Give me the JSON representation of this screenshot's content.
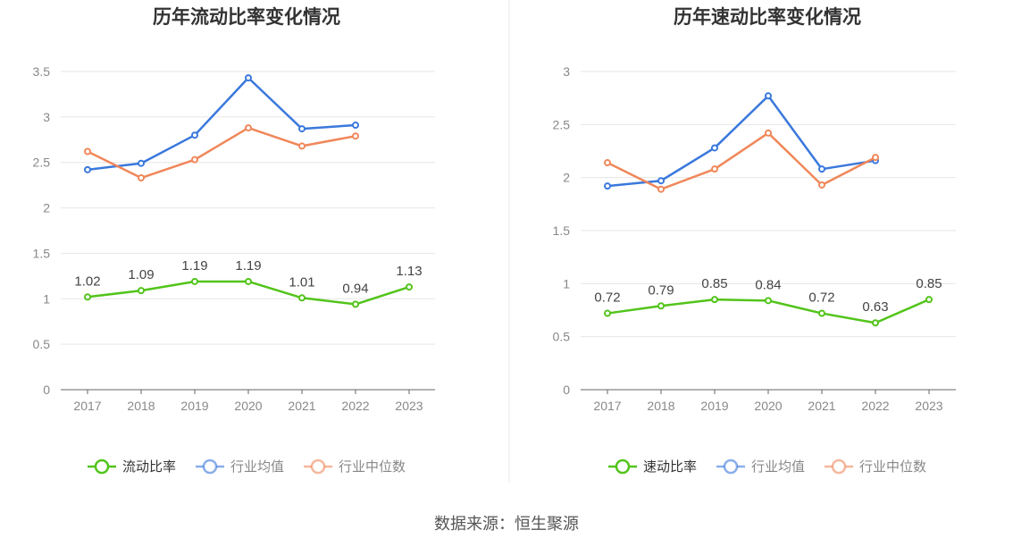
{
  "source": "数据来源：恒生聚源",
  "chart_data": [
    {
      "type": "line",
      "title": "历年流动比率变化情况",
      "categories": [
        "2017",
        "2018",
        "2019",
        "2020",
        "2021",
        "2022",
        "2023"
      ],
      "ylim": [
        0,
        3.5
      ],
      "yticks": [
        0,
        0.5,
        1,
        1.5,
        2,
        2.5,
        3,
        3.5
      ],
      "ytick_labels": [
        "0",
        "0.5",
        "1",
        "1.5",
        "2",
        "2.5",
        "3",
        "3.5"
      ],
      "grid": true,
      "legend": "bottom",
      "series": [
        {
          "name": "流动比率",
          "color": "#52c41a",
          "values": [
            1.02,
            1.09,
            1.19,
            1.19,
            1.01,
            0.94,
            1.13
          ],
          "labels": [
            "1.02",
            "1.09",
            "1.19",
            "1.19",
            "1.01",
            "0.94",
            "1.13"
          ]
        },
        {
          "name": "行业均值",
          "color": "#3a78dc",
          "values": [
            2.42,
            2.49,
            2.8,
            3.43,
            2.87,
            2.91,
            null
          ]
        },
        {
          "name": "行业中位数",
          "color": "#f0875a",
          "values": [
            2.62,
            2.33,
            2.53,
            2.88,
            2.68,
            2.79,
            null
          ]
        }
      ]
    },
    {
      "type": "line",
      "title": "历年速动比率变化情况",
      "categories": [
        "2017",
        "2018",
        "2019",
        "2020",
        "2021",
        "2022",
        "2023"
      ],
      "ylim": [
        0,
        3
      ],
      "yticks": [
        0,
        0.5,
        1,
        1.5,
        2,
        2.5,
        3
      ],
      "ytick_labels": [
        "0",
        "0.5",
        "1",
        "1.5",
        "2",
        "2.5",
        "3"
      ],
      "grid": true,
      "legend": "bottom",
      "series": [
        {
          "name": "速动比率",
          "color": "#52c41a",
          "values": [
            0.72,
            0.79,
            0.85,
            0.84,
            0.72,
            0.63,
            0.85
          ],
          "labels": [
            "0.72",
            "0.79",
            "0.85",
            "0.84",
            "0.72",
            "0.63",
            "0.85"
          ]
        },
        {
          "name": "行业均值",
          "color": "#3a78dc",
          "values": [
            1.92,
            1.97,
            2.28,
            2.77,
            2.08,
            2.16,
            null
          ]
        },
        {
          "name": "行业中位数",
          "color": "#f0875a",
          "values": [
            2.14,
            1.89,
            2.08,
            2.42,
            1.93,
            2.19,
            null
          ]
        }
      ]
    }
  ]
}
